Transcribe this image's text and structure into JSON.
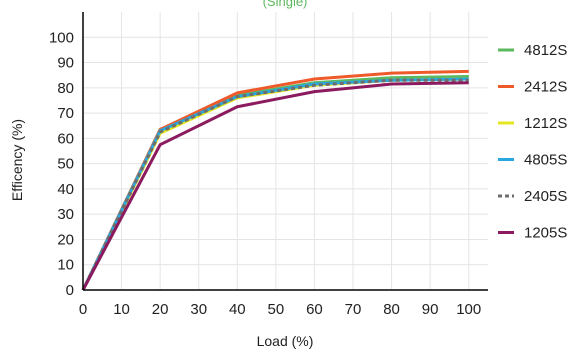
{
  "chart_data": {
    "type": "line",
    "subtitle": "(Single)",
    "subtitle_color": "#5cb85c",
    "xlabel": "Load (%)",
    "ylabel": "Efficency (%)",
    "x": [
      0,
      20,
      40,
      60,
      80,
      100
    ],
    "xticks": [
      0,
      10,
      20,
      30,
      40,
      50,
      60,
      70,
      80,
      90,
      100
    ],
    "yticks": [
      0,
      10,
      20,
      30,
      40,
      50,
      60,
      70,
      80,
      90,
      100
    ],
    "xlim": [
      0,
      105
    ],
    "ylim": [
      0,
      110
    ],
    "grid": true,
    "legend_position": "right",
    "series": [
      {
        "name": "4812S",
        "color": "#5cb85c",
        "dashed": false,
        "values": [
          0,
          63.5,
          77,
          82,
          84,
          84.5
        ]
      },
      {
        "name": "2412S",
        "color": "#ef5a2a",
        "dashed": false,
        "values": [
          0,
          63.5,
          78,
          83.5,
          85.8,
          86.5
        ]
      },
      {
        "name": "1212S",
        "color": "#e6e620",
        "dashed": false,
        "values": [
          0,
          62,
          76,
          81,
          83,
          83.5
        ]
      },
      {
        "name": "4805S",
        "color": "#29a8e0",
        "dashed": false,
        "values": [
          0,
          63,
          76.5,
          81.5,
          83,
          83.5
        ]
      },
      {
        "name": "2405S",
        "color": "#6d6d6d",
        "dashed": true,
        "values": [
          0,
          62.5,
          76.5,
          81,
          83,
          83
        ]
      },
      {
        "name": "1205S",
        "color": "#8b1a5e",
        "dashed": false,
        "values": [
          0,
          57.5,
          72.5,
          78.5,
          81.5,
          82
        ]
      }
    ]
  }
}
